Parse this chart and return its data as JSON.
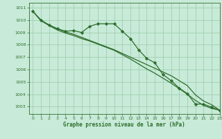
{
  "title": "Graphe pression niveau de la mer (hPa)",
  "bg_color": "#c8ead8",
  "grid_color": "#9fcfb0",
  "line_color": "#2d6e2d",
  "xlim": [
    -0.5,
    23
  ],
  "ylim": [
    1002.4,
    1011.4
  ],
  "yticks": [
    1003,
    1004,
    1005,
    1006,
    1007,
    1008,
    1009,
    1010,
    1011
  ],
  "xticks": [
    0,
    1,
    2,
    3,
    4,
    5,
    6,
    7,
    8,
    9,
    10,
    11,
    12,
    13,
    14,
    15,
    16,
    17,
    18,
    19,
    20,
    21,
    22,
    23
  ],
  "series1": [
    1010.7,
    1010.0,
    1009.6,
    1009.3,
    1009.1,
    1009.15,
    1009.0,
    1009.5,
    1009.7,
    1009.7,
    1009.7,
    1009.1,
    1008.5,
    1007.6,
    1006.9,
    1006.55,
    1005.6,
    1005.1,
    1004.5,
    1004.05,
    1003.2,
    1003.2,
    1002.95,
    1002.7
  ],
  "series2": [
    1010.7,
    1009.95,
    1009.6,
    1009.3,
    1009.05,
    1008.85,
    1008.6,
    1008.35,
    1008.1,
    1007.85,
    1007.6,
    1007.3,
    1007.0,
    1006.7,
    1006.4,
    1006.1,
    1005.8,
    1005.5,
    1005.1,
    1004.7,
    1003.95,
    1003.45,
    1003.15,
    1002.7
  ],
  "series3": [
    1010.7,
    1009.95,
    1009.55,
    1009.2,
    1008.95,
    1008.75,
    1008.5,
    1008.3,
    1008.05,
    1007.8,
    1007.55,
    1007.2,
    1006.85,
    1006.45,
    1006.05,
    1005.7,
    1005.3,
    1004.9,
    1004.45,
    1004.0,
    1003.5,
    1003.1,
    1002.85,
    1002.7
  ]
}
